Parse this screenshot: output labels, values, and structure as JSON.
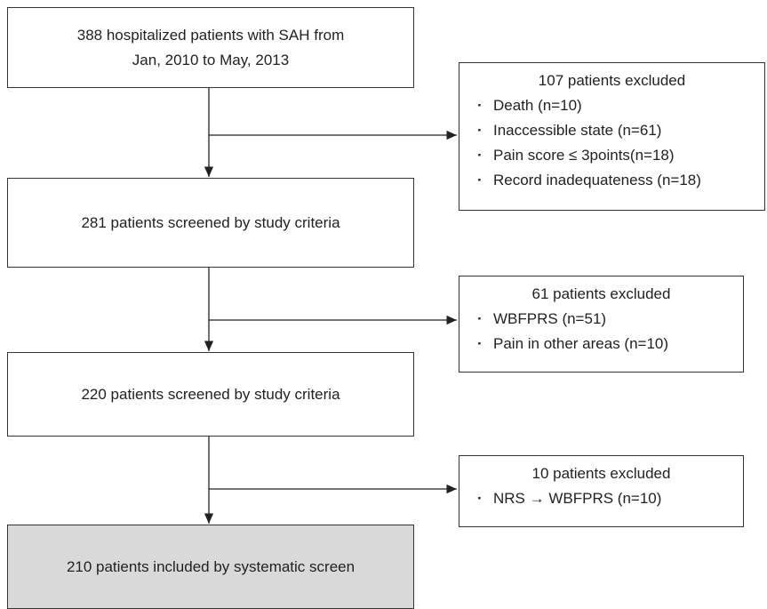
{
  "nodes": [
    {
      "lines": [
        "388 hospitalized patients with SAH from",
        "Jan, 2010 to May, 2013"
      ]
    },
    {
      "lines": [
        "281 patients screened by study criteria"
      ]
    },
    {
      "lines": [
        "220 patients screened by study criteria"
      ]
    },
    {
      "lines": [
        "210 patients included by systematic screen"
      ]
    }
  ],
  "exclusions": [
    {
      "title": "107 patients excluded",
      "items": [
        "Death (n=10)",
        "Inaccessible state (n=61)",
        "Pain score ≤ 3points(n=18)",
        "Record inadequateness (n=18)"
      ]
    },
    {
      "title": "61 patients excluded",
      "items": [
        "WBFPRS (n=51)",
        "Pain in other areas (n=10)"
      ]
    },
    {
      "title": "10 patients excluded",
      "items": [
        "NRS → WBFPRS (n=10)"
      ]
    }
  ]
}
